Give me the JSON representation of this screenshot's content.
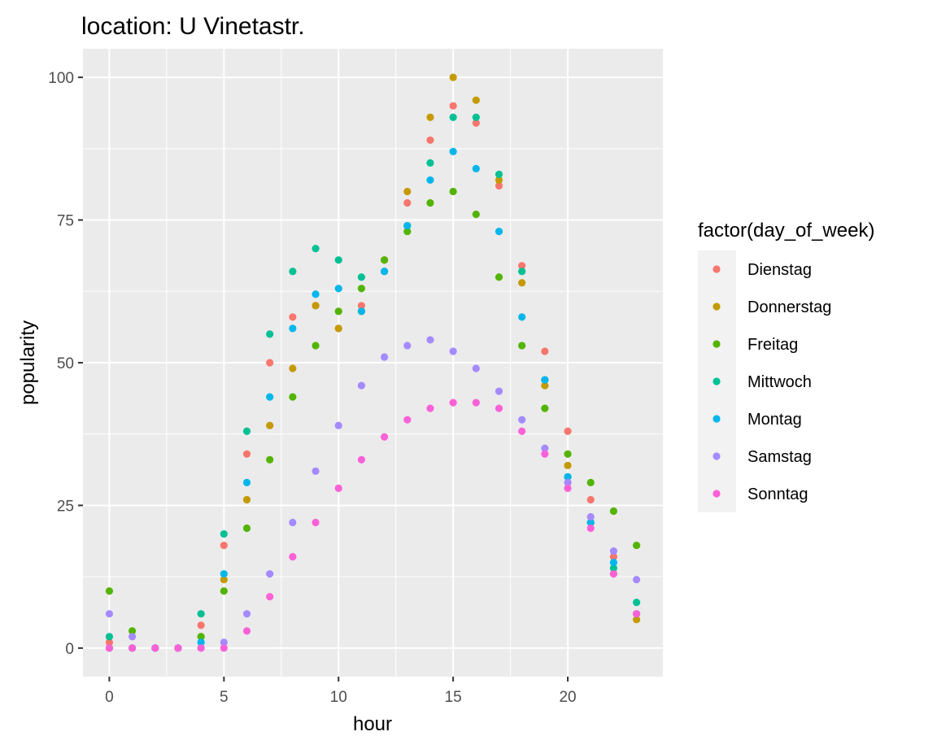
{
  "chart_data": {
    "type": "scatter",
    "title": "location: U Vinetastr.",
    "xlabel": "hour",
    "ylabel": "popularity",
    "xlim": [
      -1.15,
      24.15
    ],
    "ylim": [
      -5,
      105
    ],
    "xticks": [
      0,
      5,
      10,
      15,
      20
    ],
    "xtick_labels": [
      "0",
      "5",
      "10",
      "15",
      "20"
    ],
    "yticks": [
      0,
      25,
      50,
      75,
      100
    ],
    "ytick_labels": [
      "0",
      "25",
      "50",
      "75",
      "100"
    ],
    "grid": true,
    "legend_title": "factor(day_of_week)",
    "legend_position": "right",
    "series": [
      {
        "name": "Dienstag",
        "color": "#F8766D",
        "points": [
          [
            0,
            1
          ],
          [
            1,
            0
          ],
          [
            2,
            0
          ],
          [
            3,
            0
          ],
          [
            4,
            4
          ],
          [
            5,
            18
          ],
          [
            6,
            34
          ],
          [
            7,
            50
          ],
          [
            8,
            58
          ],
          [
            9,
            60
          ],
          [
            10,
            56
          ],
          [
            11,
            60
          ],
          [
            12,
            68
          ],
          [
            13,
            78
          ],
          [
            14,
            89
          ],
          [
            15,
            95
          ],
          [
            16,
            92
          ],
          [
            17,
            81
          ],
          [
            18,
            67
          ],
          [
            19,
            52
          ],
          [
            20,
            38
          ],
          [
            21,
            26
          ],
          [
            22,
            16
          ],
          [
            23,
            6
          ]
        ]
      },
      {
        "name": "Donnerstag",
        "color": "#C49A00",
        "points": [
          [
            0,
            0
          ],
          [
            1,
            0
          ],
          [
            2,
            0
          ],
          [
            3,
            0
          ],
          [
            4,
            2
          ],
          [
            5,
            12
          ],
          [
            6,
            26
          ],
          [
            7,
            39
          ],
          [
            8,
            49
          ],
          [
            9,
            60
          ],
          [
            10,
            56
          ],
          [
            11,
            59
          ],
          [
            12,
            68
          ],
          [
            13,
            80
          ],
          [
            14,
            93
          ],
          [
            15,
            100
          ],
          [
            16,
            96
          ],
          [
            17,
            82
          ],
          [
            18,
            64
          ],
          [
            19,
            46
          ],
          [
            20,
            32
          ],
          [
            21,
            22
          ],
          [
            22,
            13
          ],
          [
            23,
            5
          ]
        ]
      },
      {
        "name": "Freitag",
        "color": "#53B400",
        "points": [
          [
            0,
            10
          ],
          [
            1,
            3
          ],
          [
            2,
            0
          ],
          [
            3,
            0
          ],
          [
            4,
            2
          ],
          [
            5,
            10
          ],
          [
            6,
            21
          ],
          [
            7,
            33
          ],
          [
            8,
            44
          ],
          [
            9,
            53
          ],
          [
            10,
            59
          ],
          [
            11,
            63
          ],
          [
            12,
            68
          ],
          [
            13,
            73
          ],
          [
            14,
            78
          ],
          [
            15,
            80
          ],
          [
            16,
            76
          ],
          [
            17,
            65
          ],
          [
            18,
            53
          ],
          [
            19,
            42
          ],
          [
            20,
            34
          ],
          [
            21,
            29
          ],
          [
            22,
            24
          ],
          [
            23,
            18
          ]
        ]
      },
      {
        "name": "Mittwoch",
        "color": "#00C094",
        "points": [
          [
            0,
            2
          ],
          [
            1,
            0
          ],
          [
            2,
            0
          ],
          [
            3,
            0
          ],
          [
            4,
            6
          ],
          [
            5,
            20
          ],
          [
            6,
            38
          ],
          [
            7,
            55
          ],
          [
            8,
            66
          ],
          [
            9,
            70
          ],
          [
            10,
            68
          ],
          [
            11,
            65
          ],
          [
            12,
            66
          ],
          [
            13,
            74
          ],
          [
            14,
            85
          ],
          [
            15,
            93
          ],
          [
            16,
            93
          ],
          [
            17,
            83
          ],
          [
            18,
            66
          ],
          [
            19,
            47
          ],
          [
            20,
            30
          ],
          [
            21,
            22
          ],
          [
            22,
            14
          ],
          [
            23,
            8
          ]
        ]
      },
      {
        "name": "Montag",
        "color": "#00B6EB",
        "points": [
          [
            0,
            0
          ],
          [
            1,
            0
          ],
          [
            2,
            0
          ],
          [
            3,
            0
          ],
          [
            4,
            1
          ],
          [
            5,
            13
          ],
          [
            6,
            29
          ],
          [
            7,
            44
          ],
          [
            8,
            56
          ],
          [
            9,
            62
          ],
          [
            10,
            63
          ],
          [
            11,
            59
          ],
          [
            12,
            66
          ],
          [
            13,
            74
          ],
          [
            14,
            82
          ],
          [
            15,
            87
          ],
          [
            16,
            84
          ],
          [
            17,
            73
          ],
          [
            18,
            58
          ],
          [
            19,
            47
          ],
          [
            20,
            30
          ],
          [
            21,
            22
          ],
          [
            22,
            15
          ],
          [
            23,
            6
          ]
        ]
      },
      {
        "name": "Samstag",
        "color": "#A58AFF",
        "points": [
          [
            0,
            6
          ],
          [
            1,
            2
          ],
          [
            2,
            0
          ],
          [
            3,
            0
          ],
          [
            4,
            0
          ],
          [
            5,
            1
          ],
          [
            6,
            6
          ],
          [
            7,
            13
          ],
          [
            8,
            22
          ],
          [
            9,
            31
          ],
          [
            10,
            39
          ],
          [
            11,
            46
          ],
          [
            12,
            51
          ],
          [
            13,
            53
          ],
          [
            14,
            54
          ],
          [
            15,
            52
          ],
          [
            16,
            49
          ],
          [
            17,
            45
          ],
          [
            18,
            40
          ],
          [
            19,
            35
          ],
          [
            20,
            29
          ],
          [
            21,
            23
          ],
          [
            22,
            17
          ],
          [
            23,
            12
          ]
        ]
      },
      {
        "name": "Sonntag",
        "color": "#FB61D7",
        "points": [
          [
            0,
            0
          ],
          [
            1,
            0
          ],
          [
            2,
            0
          ],
          [
            3,
            0
          ],
          [
            4,
            0
          ],
          [
            5,
            0
          ],
          [
            6,
            3
          ],
          [
            7,
            9
          ],
          [
            8,
            16
          ],
          [
            9,
            22
          ],
          [
            10,
            28
          ],
          [
            11,
            33
          ],
          [
            12,
            37
          ],
          [
            13,
            40
          ],
          [
            14,
            42
          ],
          [
            15,
            43
          ],
          [
            16,
            43
          ],
          [
            17,
            42
          ],
          [
            18,
            38
          ],
          [
            19,
            34
          ],
          [
            20,
            28
          ],
          [
            21,
            21
          ],
          [
            22,
            13
          ],
          [
            23,
            6
          ]
        ]
      }
    ]
  }
}
